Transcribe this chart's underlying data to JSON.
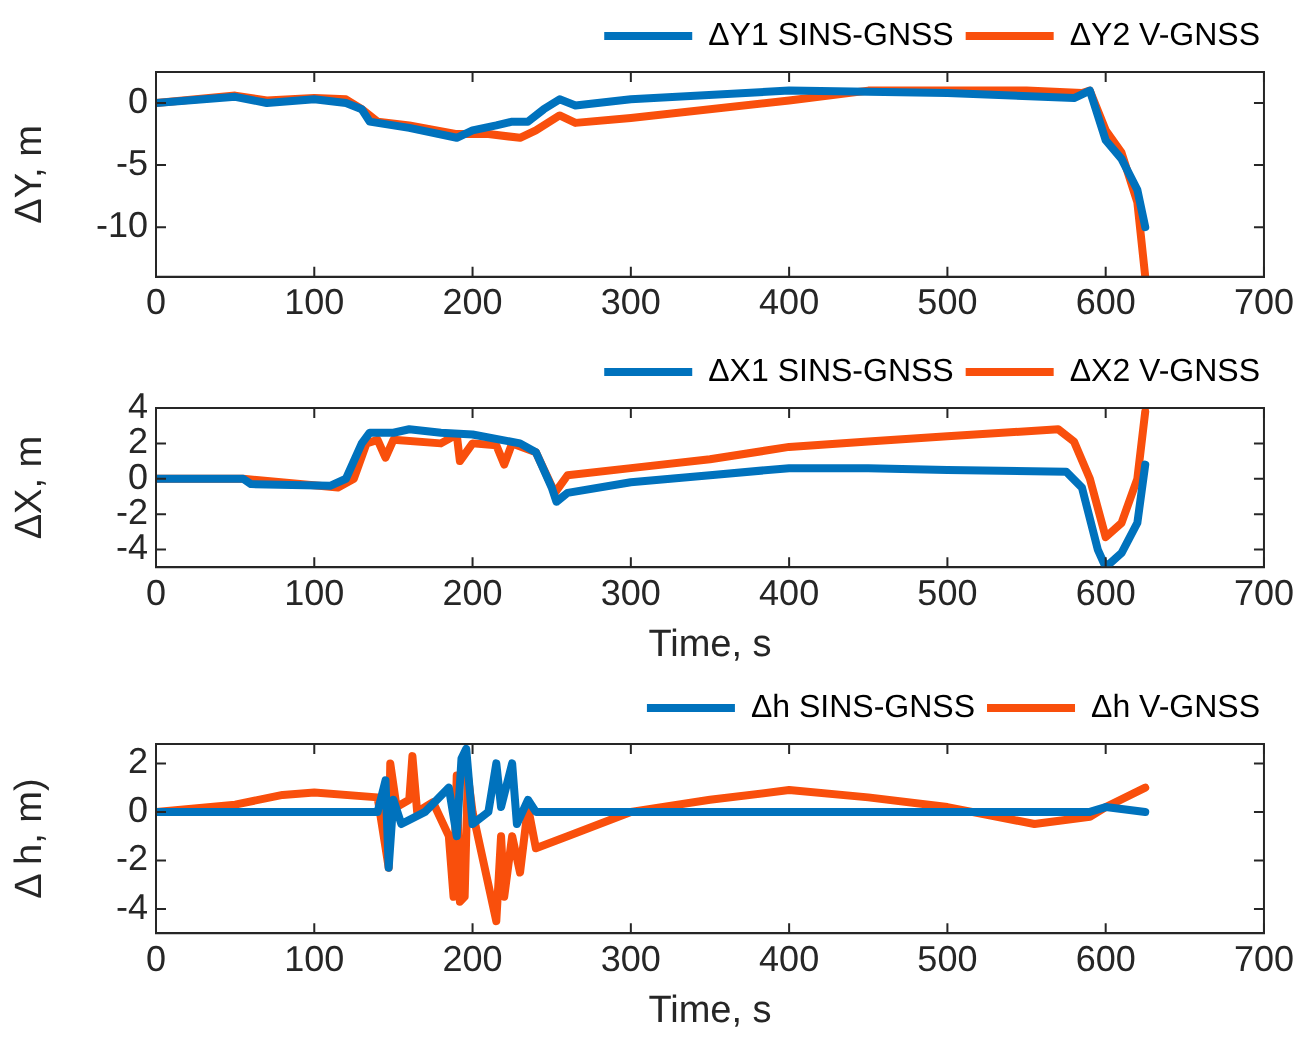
{
  "chart_data": [
    {
      "type": "line",
      "ylabel": "ΔY, m",
      "xlim": [
        0,
        700
      ],
      "xticks": [
        0,
        100,
        200,
        300,
        400,
        500,
        600,
        700
      ],
      "ylim": [
        -14,
        2.5
      ],
      "yticks": [
        -10,
        -5,
        0
      ],
      "grid": false,
      "legend": "top right",
      "marker": "none",
      "line_style": "solid",
      "series": [
        {
          "name": "ΔY1 SINS-GNSS",
          "color": "#0072bd",
          "x": [
            0,
            50,
            70,
            100,
            120,
            130,
            135,
            160,
            190,
            200,
            215,
            225,
            235,
            245,
            255,
            265,
            300,
            400,
            500,
            580,
            590,
            600,
            610,
            620,
            625
          ],
          "values": [
            0,
            0.5,
            0,
            0.3,
            0,
            -0.5,
            -1.5,
            -2,
            -2.8,
            -2.2,
            -1.8,
            -1.5,
            -1.5,
            -0.5,
            0.3,
            -0.2,
            0.3,
            1,
            0.8,
            0.4,
            1,
            -3,
            -4.5,
            -7,
            -10
          ]
        },
        {
          "name": "ΔY2 V-GNSS",
          "color": "#f94f0c",
          "x": [
            0,
            50,
            70,
            100,
            120,
            130,
            140,
            160,
            190,
            210,
            230,
            240,
            255,
            265,
            300,
            400,
            450,
            550,
            585,
            590,
            600,
            610,
            620,
            625
          ],
          "values": [
            0,
            0.6,
            0.2,
            0.4,
            0.3,
            -0.5,
            -1.5,
            -1.8,
            -2.5,
            -2.5,
            -2.8,
            -2.2,
            -1,
            -1.6,
            -1.2,
            0.2,
            1,
            1,
            0.8,
            1,
            -2.2,
            -4,
            -8,
            -14
          ]
        }
      ]
    },
    {
      "type": "line",
      "xlabel": "Time, s",
      "ylabel": "ΔX, m",
      "xlim": [
        0,
        700
      ],
      "xticks": [
        0,
        100,
        200,
        300,
        400,
        500,
        600,
        700
      ],
      "ylim": [
        -5,
        4
      ],
      "yticks": [
        -4,
        -2,
        0,
        2,
        4
      ],
      "grid": false,
      "legend": "top right",
      "marker": "none",
      "line_style": "solid",
      "series": [
        {
          "name": "ΔX1 SINS-GNSS",
          "color": "#0072bd",
          "x": [
            0,
            55,
            60,
            110,
            120,
            130,
            135,
            150,
            160,
            180,
            200,
            230,
            240,
            250,
            253,
            260,
            300,
            350,
            400,
            450,
            500,
            575,
            585,
            595,
            600,
            610,
            620,
            625
          ],
          "values": [
            0,
            0,
            -0.3,
            -0.4,
            0,
            2,
            2.6,
            2.6,
            2.8,
            2.6,
            2.5,
            2,
            1.5,
            -0.5,
            -1.3,
            -0.8,
            -0.2,
            0.2,
            0.6,
            0.6,
            0.5,
            0.4,
            -0.5,
            -4,
            -5,
            -4.2,
            -2.5,
            0.8
          ]
        },
        {
          "name": "ΔX2 V-GNSS",
          "color": "#f94f0c",
          "x": [
            0,
            55,
            115,
            125,
            133,
            140,
            145,
            150,
            180,
            190,
            192,
            200,
            215,
            220,
            225,
            240,
            252,
            260,
            300,
            350,
            400,
            450,
            500,
            570,
            580,
            590,
            600,
            610,
            620,
            625
          ],
          "values": [
            0,
            0,
            -0.5,
            0,
            2,
            2.2,
            1.2,
            2.2,
            2,
            2.5,
            1,
            2,
            1.9,
            0.8,
            2,
            1.5,
            -0.8,
            0.2,
            0.6,
            1.1,
            1.8,
            2.1,
            2.4,
            2.8,
            2.1,
            0,
            -3.3,
            -2.5,
            0,
            3.8
          ]
        }
      ]
    },
    {
      "type": "line",
      "xlabel": "Time, s",
      "ylabel": "Δ h, m)",
      "xlim": [
        0,
        700
      ],
      "xticks": [
        0,
        100,
        200,
        300,
        400,
        500,
        600,
        700
      ],
      "ylim": [
        -5,
        2.8
      ],
      "yticks": [
        -4,
        -2,
        0,
        2
      ],
      "grid": false,
      "legend": "top right",
      "marker": "none",
      "line_style": "solid",
      "series": [
        {
          "name": "Δh SINS-GNSS",
          "color": "#0072bd",
          "x": [
            0,
            140,
            145,
            147,
            150,
            155,
            170,
            185,
            190,
            193,
            196,
            200,
            210,
            215,
            218,
            225,
            228,
            235,
            240,
            300,
            500,
            590,
            600,
            625
          ],
          "values": [
            0,
            0,
            1.3,
            -2.3,
            0.5,
            -0.5,
            0,
            1,
            -1,
            2.2,
            2.6,
            -0.5,
            0,
            2,
            0.2,
            2,
            -0.5,
            0.5,
            0,
            0,
            0,
            0,
            0.2,
            0
          ]
        },
        {
          "name": "Δh V-GNSS",
          "color": "#f94f0c",
          "x": [
            0,
            50,
            80,
            100,
            140,
            147,
            148,
            152,
            160,
            162,
            165,
            175,
            185,
            188,
            190,
            192,
            195,
            197,
            200,
            215,
            218,
            220,
            225,
            230,
            235,
            240,
            260,
            300,
            350,
            400,
            450,
            500,
            555,
            590,
            600,
            625
          ],
          "values": [
            0,
            0.3,
            0.7,
            0.8,
            0.6,
            -2.3,
            2,
            0.2,
            0.5,
            2.3,
            0,
            0.4,
            -1,
            -3.5,
            1.5,
            -3.7,
            -3.5,
            1.5,
            0,
            -4.5,
            -1,
            -3.5,
            -1,
            -2.5,
            0.2,
            -1.5,
            -1,
            0,
            0.5,
            0.9,
            0.6,
            0.2,
            -0.5,
            -0.2,
            0.2,
            1
          ]
        }
      ]
    }
  ]
}
